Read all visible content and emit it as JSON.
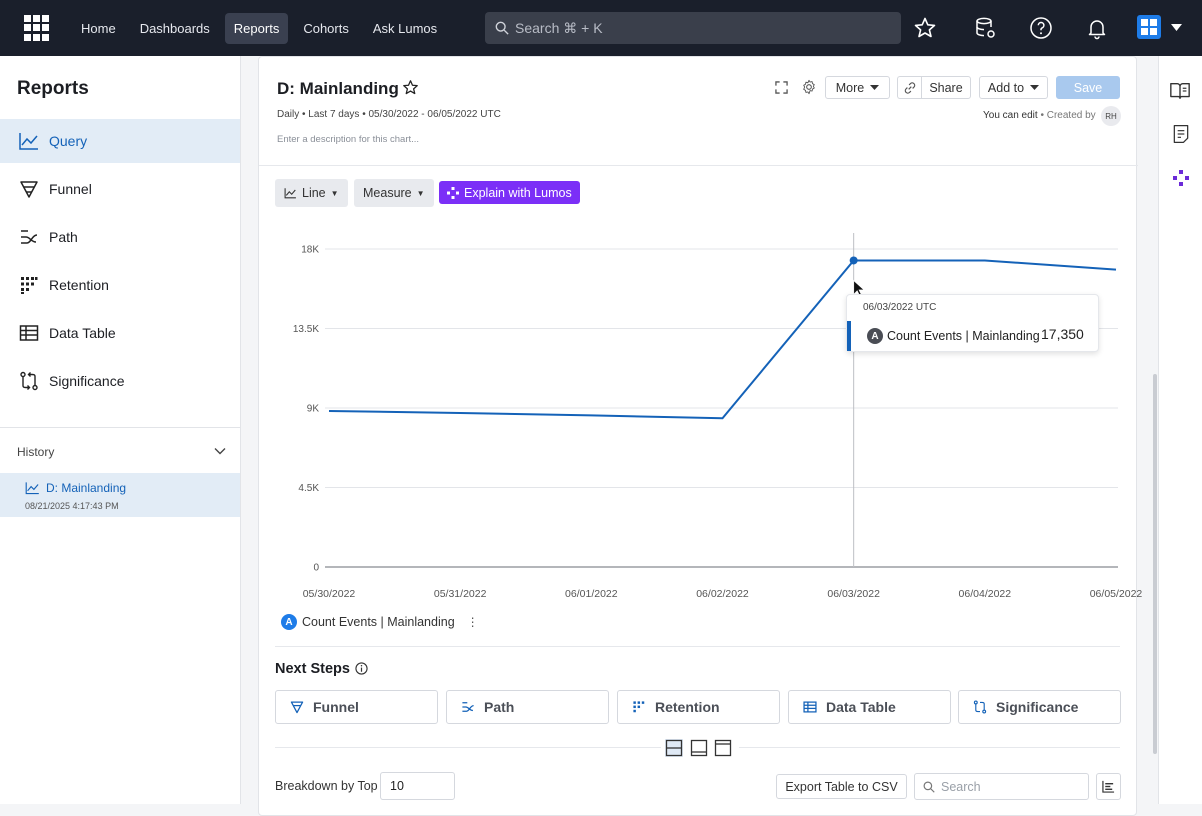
{
  "nav": {
    "items": [
      "Home",
      "Dashboards",
      "Reports",
      "Cohorts",
      "Ask Lumos"
    ],
    "active": "Reports",
    "search_placeholder": "Search ⌘ + K"
  },
  "sidebar": {
    "title": "Reports",
    "items": [
      {
        "label": "Query",
        "icon": "line-chart-icon",
        "active": true
      },
      {
        "label": "Funnel",
        "icon": "funnel-icon"
      },
      {
        "label": "Path",
        "icon": "path-icon"
      },
      {
        "label": "Retention",
        "icon": "retention-icon"
      },
      {
        "label": "Data Table",
        "icon": "table-icon"
      },
      {
        "label": "Significance",
        "icon": "significance-icon"
      }
    ],
    "history_label": "History",
    "history": [
      {
        "title": "D: Mainlanding",
        "date": "08/21/2025 4:17:43 PM"
      }
    ]
  },
  "report": {
    "title": "D: Mainlanding",
    "meta": "Daily • Last 7 days • 05/30/2022 - 06/05/2022 UTC",
    "description_placeholder": "Enter a description for this chart...",
    "more_label": "More",
    "share_label": "Share",
    "add_to_label": "Add to",
    "save_label": "Save",
    "edit_status": "You can edit",
    "created_by": "• Created by",
    "creator_initials": "RH",
    "chart_type_label": "Line",
    "measure_label": "Measure",
    "explain_label": "Explain with Lumos"
  },
  "chart_data": {
    "type": "line",
    "categories": [
      "05/30/2022",
      "05/31/2022",
      "06/01/2022",
      "06/02/2022",
      "06/03/2022",
      "06/04/2022",
      "06/05/2022"
    ],
    "series": [
      {
        "name": "Count Events | Mainlanding",
        "badge": "A",
        "color": "#1462b8",
        "values": [
          8830,
          8720,
          8580,
          8420,
          17350,
          17350,
          16830
        ]
      }
    ],
    "yticks": [
      0,
      4500,
      9000,
      13500,
      18000
    ],
    "ytick_labels": [
      "0",
      "4.5K",
      "9K",
      "13.5K",
      "18K"
    ],
    "ylim": [
      0,
      18000
    ],
    "grid": true,
    "hover_index": 4
  },
  "tooltip": {
    "date": "06/03/2022 UTC",
    "badge": "A",
    "name": "Count Events | Mainlanding",
    "value": "17,350"
  },
  "legend": {
    "badge": "A",
    "name": "Count Events | Mainlanding"
  },
  "next_steps": {
    "title": "Next Steps",
    "items": [
      "Funnel",
      "Path",
      "Retention",
      "Data Table",
      "Significance"
    ]
  },
  "table_controls": {
    "breakdown_label": "Breakdown by Top",
    "breakdown_value": "10",
    "export_label": "Export Table to CSV",
    "search_placeholder": "Search"
  },
  "colors": {
    "accent": "#1462b8",
    "lumos": "#7b2ff7",
    "nav_bg": "#1a1f2b"
  }
}
